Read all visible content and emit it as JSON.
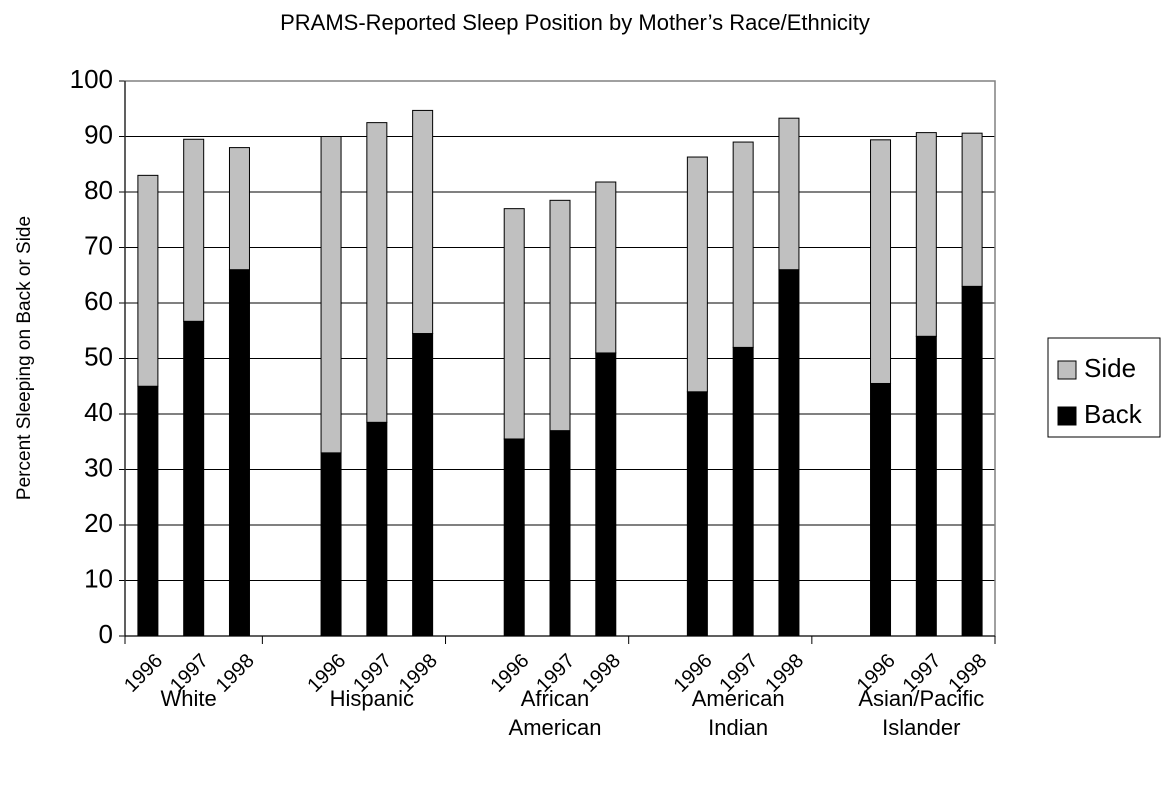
{
  "chart_data": {
    "type": "stacked-bar",
    "title": "PRAMS-Reported Sleep Position by Mother’s Race/Ethnicity",
    "y_label": "Percent Sleeping on Back or Side",
    "categories": [
      "1996",
      "1997",
      "1998",
      null,
      "1996",
      "1997",
      "1998",
      null,
      "1996",
      "1997",
      "1998",
      null,
      "1996",
      "1997",
      "1998",
      null,
      "1996",
      "1997",
      "1998"
    ],
    "groups": [
      [
        "White"
      ],
      [
        "Hispanic"
      ],
      [
        "African",
        "American"
      ],
      [
        "American",
        "Indian"
      ],
      [
        "Asian/Pacific",
        "Islander"
      ]
    ],
    "series": [
      {
        "name": "Back",
        "color": "#000000",
        "values": [
          45,
          56.7,
          66,
          null,
          33,
          38.5,
          54.5,
          null,
          35.5,
          37,
          51,
          null,
          44,
          52,
          66,
          null,
          45.5,
          54,
          63
        ]
      },
      {
        "name": "Side",
        "color": "#c0c0c0",
        "values": [
          38,
          32.8,
          22,
          null,
          57,
          54,
          40.2,
          null,
          41.5,
          41.5,
          30.8,
          null,
          42.3,
          37,
          27.3,
          null,
          43.9,
          36.7,
          27.6
        ]
      }
    ],
    "ylim": [
      0,
      100
    ],
    "yticks": [
      0,
      10,
      20,
      30,
      40,
      50,
      60,
      70,
      80,
      90,
      100
    ],
    "grid": true,
    "legend": "right"
  }
}
